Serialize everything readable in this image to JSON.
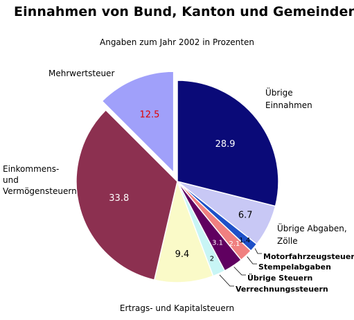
{
  "chart_data": {
    "type": "pie",
    "title": "Einnahmen von Bund, Kanton und Gemeinden",
    "subtitle": "Angaben zum Jahr 2002 in Prozenten",
    "caption": "Ertrags- und Kapitalsteuern",
    "slices": [
      {
        "label": "Übrige Einnahmen",
        "value": 28.9,
        "color": "#0a0a78",
        "value_color": "#ffffff"
      },
      {
        "label": "Übrige Abgaben, Zölle",
        "value": 6.7,
        "color": "#c8c8f5",
        "value_color": "#000000"
      },
      {
        "label": "Motorfahrzeugsteuern",
        "value": 1.4,
        "color": "#1e50c8",
        "value_color": "#000000",
        "display": "1.4"
      },
      {
        "label": "Stempelabgaben",
        "value": 2.1,
        "color": "#f08080",
        "value_color": "#ffffff"
      },
      {
        "label": "Übrige Steuern",
        "value": 3.1,
        "color": "#600060",
        "value_color": "#ffffff"
      },
      {
        "label": "Verrechnungssteuern",
        "value": 2,
        "color": "#c8f5f5",
        "value_color": "#000000"
      },
      {
        "label": "",
        "value": 9.4,
        "color": "#fafac8",
        "value_color": "#000000"
      },
      {
        "label": "Einkommens- und Vermögensteuern",
        "value": 33.8,
        "color": "#8c3050",
        "value_color": "#ffffff"
      },
      {
        "label": "Mehrwertsteuer",
        "value": 12.5,
        "color": "#a0a0fa",
        "value_color": "#e00000",
        "exploded": true
      }
    ],
    "labels": {
      "uebrige_einnahmen": [
        "Übrige",
        "Einnahmen"
      ],
      "uebrige_abgaben": [
        "Übrige Abgaben,",
        "Zölle"
      ],
      "motorfahrzeug": "Motorfahrzeugsteuern",
      "stempel": "Stempelabgaben",
      "uebrige_steuern": "Übrige Steuern",
      "verrechnung": "Verrechnungssteuern",
      "einkommen": [
        "Einkommens-",
        "und",
        "Vermögensteuern"
      ],
      "mehrwert": "Mehrwertsteuer"
    }
  }
}
